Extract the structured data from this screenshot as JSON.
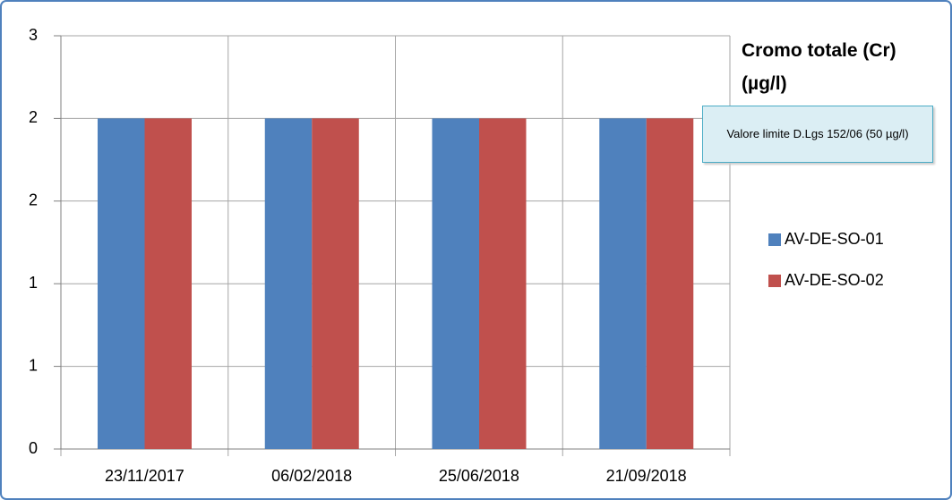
{
  "chart_data": {
    "type": "bar",
    "title": "Cromo totale (Cr) (µg/l)",
    "annotation": "Valore limite D.Lgs 152/06 (50 µg/l)",
    "categories": [
      "23/11/2017",
      "06/02/2018",
      "25/06/2018",
      "21/09/2018"
    ],
    "series": [
      {
        "name": "AV-DE-SO-01",
        "color": "#4f81bd",
        "values": [
          2.4,
          2.4,
          2.4,
          2.4
        ]
      },
      {
        "name": "AV-DE-SO-02",
        "color": "#c0504d",
        "values": [
          2.4,
          2.4,
          2.4,
          2.4
        ]
      }
    ],
    "ylim": [
      0,
      3
    ],
    "yticks": [
      0,
      {
        "value": 0.6,
        "label": "1"
      },
      {
        "value": 1.2,
        "label": "1"
      },
      {
        "value": 1.8,
        "label": "2"
      },
      {
        "value": 2.4,
        "label": "2"
      },
      3
    ],
    "grid": true,
    "legend": "right"
  }
}
